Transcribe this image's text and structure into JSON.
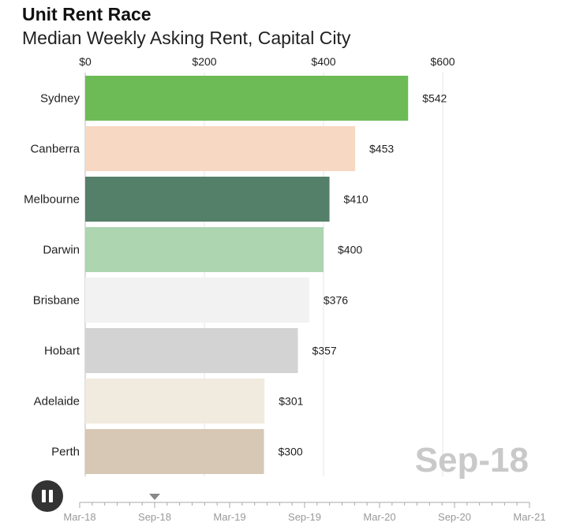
{
  "header": {
    "title": "Unit Rent Race",
    "subtitle": "Median Weekly Asking Rent, Capital City"
  },
  "period_label": "Sep-18",
  "chart_data": {
    "type": "bar",
    "orientation": "horizontal",
    "title": "Unit Rent Race",
    "subtitle": "Median Weekly Asking Rent, Capital City",
    "xlim": [
      0,
      600
    ],
    "x_ticks": [
      0,
      200,
      400,
      600
    ],
    "x_tick_labels": [
      "$0",
      "$200",
      "$400",
      "$600"
    ],
    "axis_position": "top",
    "grid": true,
    "categories": [
      "Sydney",
      "Canberra",
      "Melbourne",
      "Darwin",
      "Brisbane",
      "Hobart",
      "Adelaide",
      "Perth"
    ],
    "values": [
      542,
      453,
      410,
      400,
      376,
      357,
      301,
      300
    ],
    "value_labels": [
      "$542",
      "$453",
      "$410",
      "$400",
      "$376",
      "$357",
      "$301",
      "$300"
    ],
    "colors": [
      "#6dbb57",
      "#f7d8c2",
      "#54806a",
      "#acd5b0",
      "#f2f2f2",
      "#d3d3d3",
      "#f1eadf",
      "#d7c7b5"
    ],
    "period": "Sep-18"
  },
  "timeline": {
    "labels": [
      "Mar-18",
      "Sep-18",
      "Mar-19",
      "Sep-19",
      "Mar-20",
      "Sep-20",
      "Mar-21"
    ],
    "current": "Sep-18",
    "current_index": 1
  },
  "controls": {
    "pause_icon": "pause-icon"
  }
}
